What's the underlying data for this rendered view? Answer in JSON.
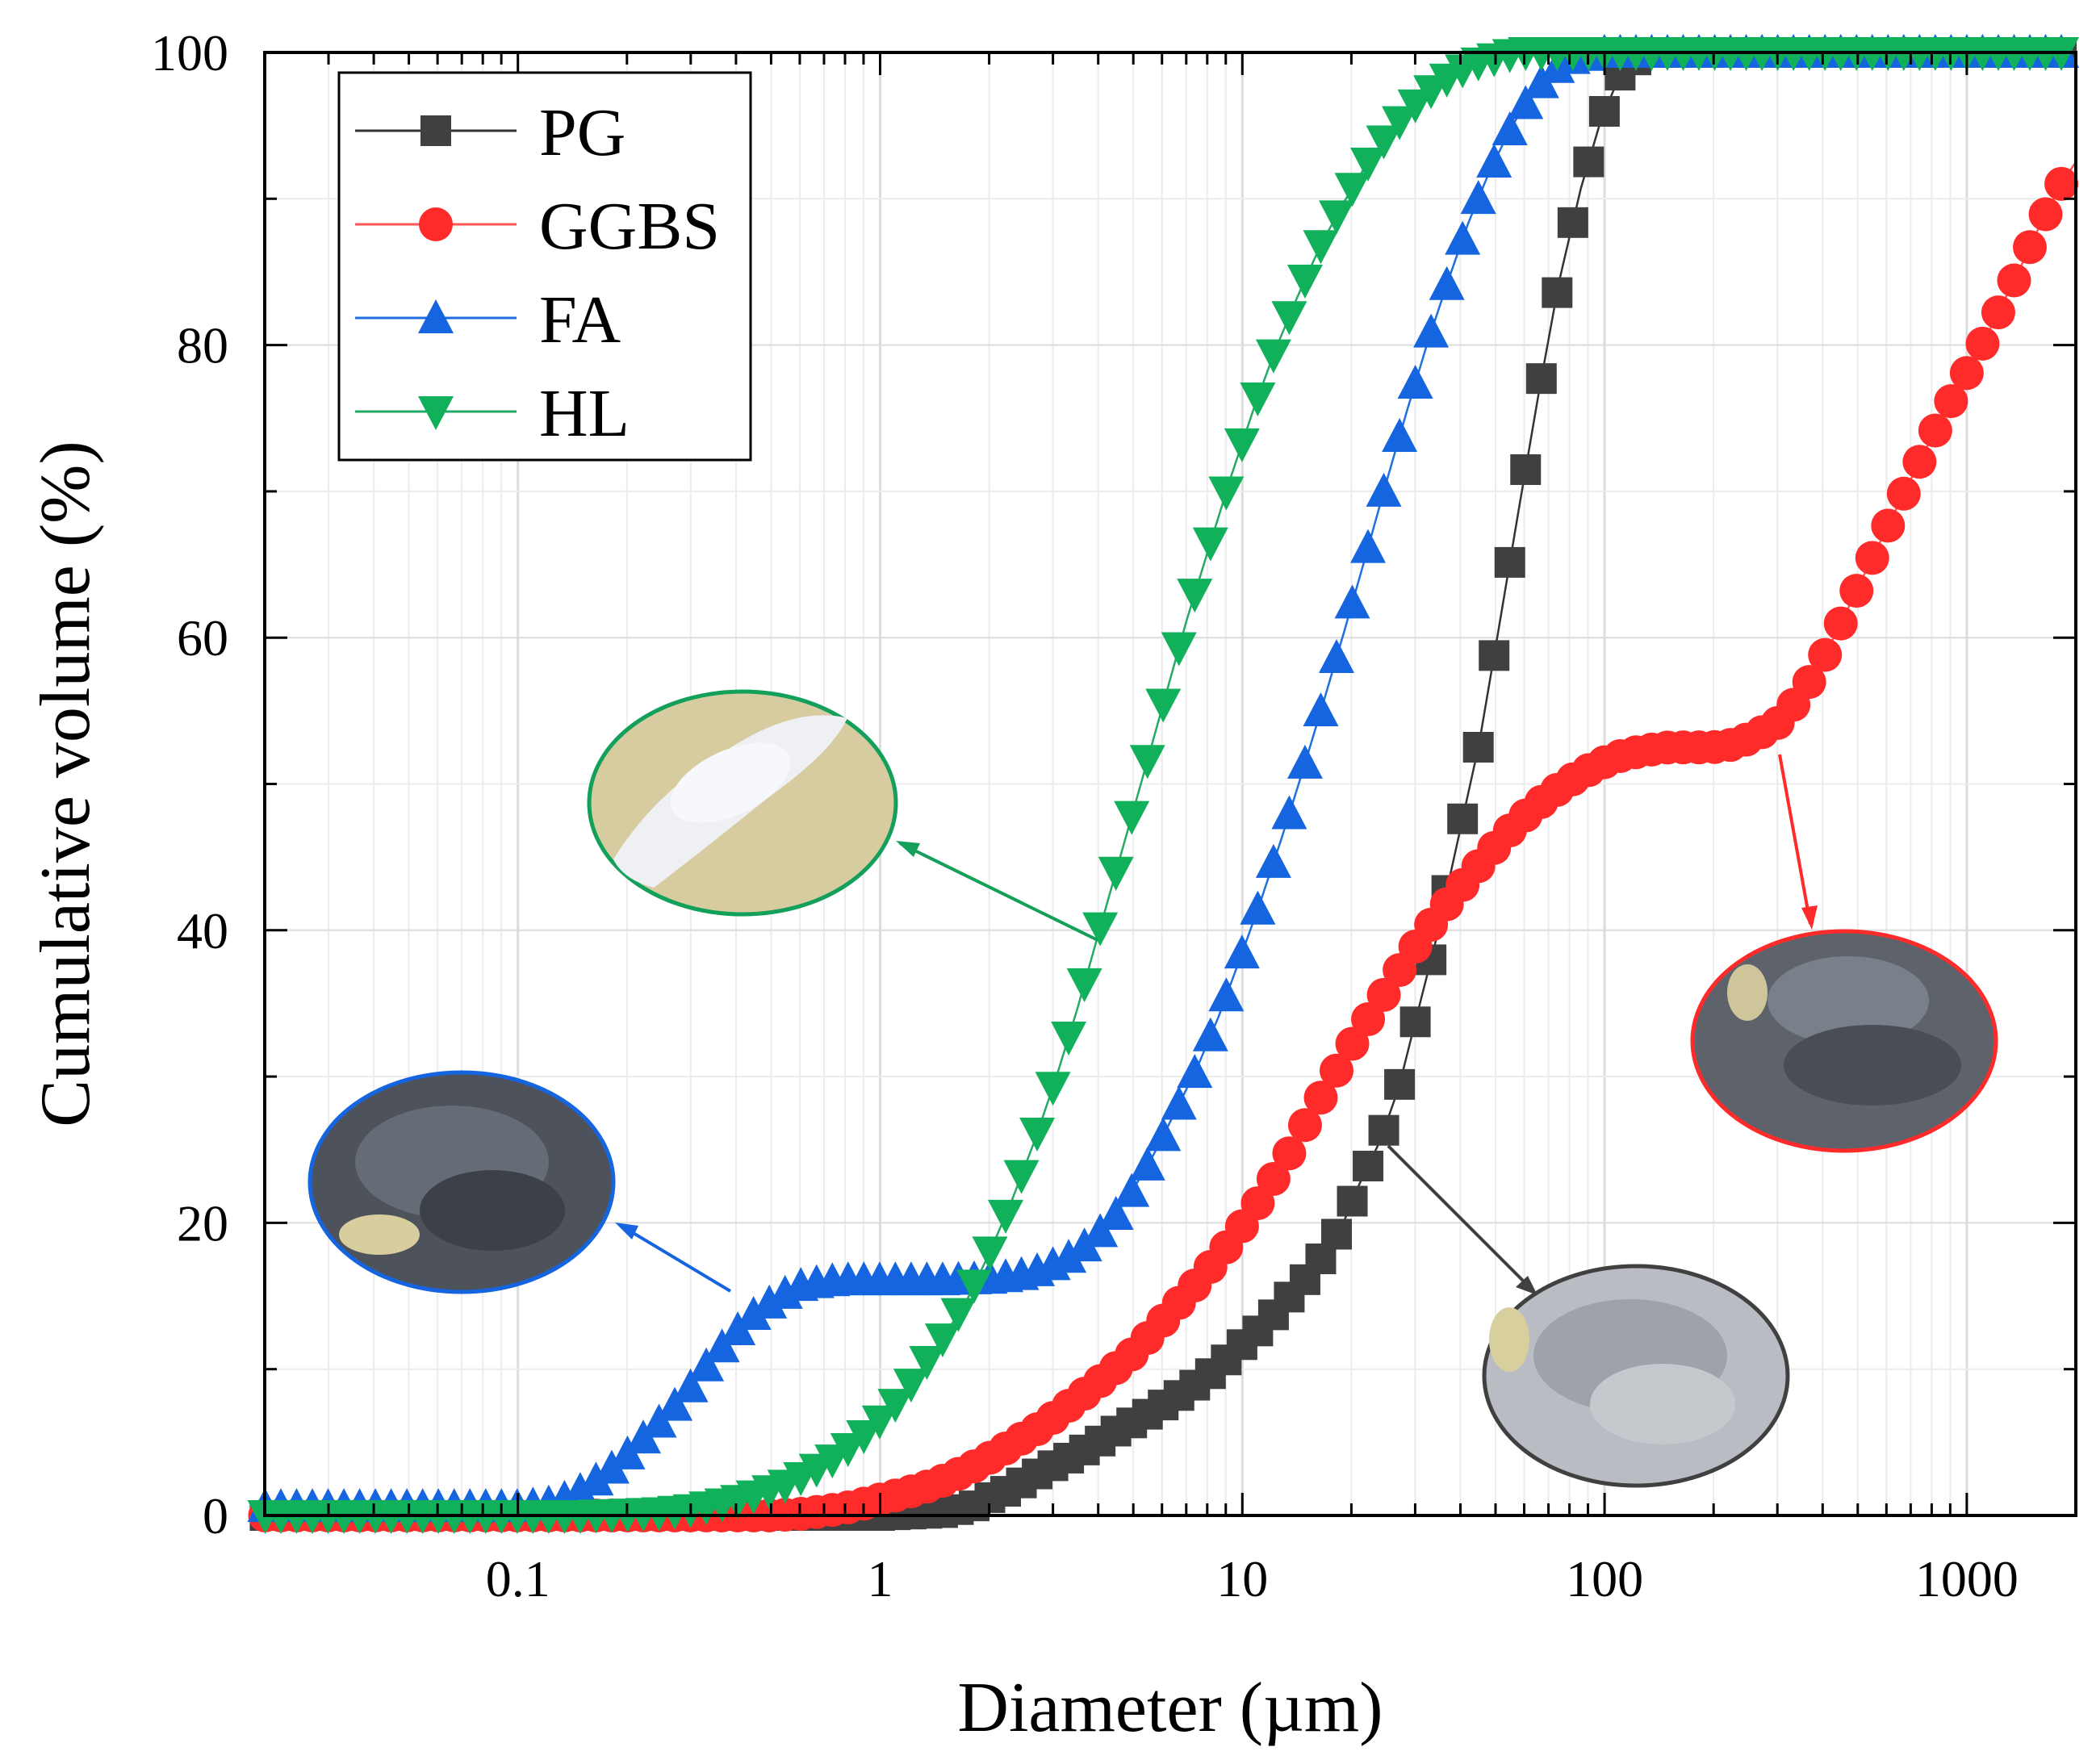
{
  "chart_data": {
    "type": "scatter",
    "x_scale": "log",
    "xlabel": "Diameter (µm)",
    "ylabel": "Cumulative volume (%)",
    "xlim": [
      0.02,
      2000
    ],
    "ylim": [
      0,
      100
    ],
    "grid": true,
    "legend_position": "top-left",
    "x_ticks": [
      {
        "value": 0.1,
        "label": "0.1"
      },
      {
        "value": 1,
        "label": "1"
      },
      {
        "value": 10,
        "label": "10"
      },
      {
        "value": 100,
        "label": "100"
      },
      {
        "value": 1000,
        "label": "1000"
      }
    ],
    "y_ticks": [
      {
        "value": 0,
        "label": "0"
      },
      {
        "value": 20,
        "label": "20"
      },
      {
        "value": 40,
        "label": "40"
      },
      {
        "value": 60,
        "label": "60"
      },
      {
        "value": 80,
        "label": "80"
      },
      {
        "value": 100,
        "label": "100"
      }
    ],
    "series": [
      {
        "name": "PG",
        "marker": "square",
        "color": "#404040",
        "line_color": "#333333",
        "points": [
          [
            0.02,
            0
          ],
          [
            1,
            0
          ],
          [
            1.5,
            0.2
          ],
          [
            1.8,
            0.6
          ],
          [
            2.0,
            1.2
          ],
          [
            2.3,
            1.8
          ],
          [
            2.6,
            2.6
          ],
          [
            3.0,
            3.4
          ],
          [
            3.5,
            4.2
          ],
          [
            4.0,
            5.0
          ],
          [
            4.5,
            5.8
          ],
          [
            5.2,
            6.6
          ],
          [
            6.0,
            7.5
          ],
          [
            7.0,
            8.5
          ],
          [
            8.0,
            9.5
          ],
          [
            9.0,
            10.6
          ],
          [
            10,
            11.7
          ],
          [
            11.5,
            13.0
          ],
          [
            13,
            14.5
          ],
          [
            15,
            16.2
          ],
          [
            17,
            18.0
          ],
          [
            19,
            20.0
          ],
          [
            21,
            22.6
          ],
          [
            24,
            25.6
          ],
          [
            27,
            29.2
          ],
          [
            30,
            33.7
          ],
          [
            34,
            39.0
          ],
          [
            45,
            52.7
          ],
          [
            51,
            60.6
          ],
          [
            58,
            68.8
          ],
          [
            66,
            76.9
          ],
          [
            75,
            84.4
          ],
          [
            86,
            90.7
          ],
          [
            98,
            95.5
          ],
          [
            112,
            98.8
          ],
          [
            130,
            100
          ],
          [
            2000,
            100
          ]
        ]
      },
      {
        "name": "GGBS",
        "marker": "circle",
        "color": "#ff2a2a",
        "line_color": "#ff5555",
        "points": [
          [
            0.02,
            0
          ],
          [
            0.5,
            0
          ],
          [
            0.6,
            0.1
          ],
          [
            0.7,
            0.3
          ],
          [
            0.8,
            0.5
          ],
          [
            0.9,
            0.8
          ],
          [
            1.0,
            1.1
          ],
          [
            1.2,
            1.6
          ],
          [
            1.4,
            2.1
          ],
          [
            1.6,
            2.7
          ],
          [
            1.8,
            3.3
          ],
          [
            2.1,
            4.2
          ],
          [
            2.4,
            5.1
          ],
          [
            2.8,
            6.1
          ],
          [
            3.2,
            7.2
          ],
          [
            3.7,
            8.4
          ],
          [
            4.3,
            9.7
          ],
          [
            5.0,
            11.1
          ],
          [
            5.7,
            12.6
          ],
          [
            6.5,
            14.2
          ],
          [
            7.5,
            15.9
          ],
          [
            8.7,
            17.8
          ],
          [
            10,
            19.8
          ],
          [
            11.5,
            22.0
          ],
          [
            13.3,
            24.5
          ],
          [
            15.3,
            27.2
          ],
          [
            17.7,
            29.9
          ],
          [
            20.4,
            32.5
          ],
          [
            23.6,
            34.9
          ],
          [
            27.2,
            37.3
          ],
          [
            31.4,
            39.6
          ],
          [
            36.2,
            41.6
          ],
          [
            41.8,
            43.5
          ],
          [
            48.2,
            45.3
          ],
          [
            55.6,
            47.0
          ],
          [
            64,
            48.4
          ],
          [
            74,
            49.6
          ],
          [
            85,
            50.6
          ],
          [
            98,
            51.4
          ],
          [
            113,
            52.0
          ],
          [
            130,
            52.3
          ],
          [
            150,
            52.5
          ],
          [
            172,
            52.5
          ],
          [
            198,
            52.5
          ],
          [
            228,
            52.7
          ],
          [
            262,
            53.3
          ],
          [
            302,
            54.2
          ],
          [
            348,
            56.0
          ],
          [
            400,
            58.5
          ],
          [
            460,
            61.5
          ],
          [
            530,
            64.7
          ],
          [
            610,
            67.8
          ],
          [
            700,
            70.8
          ],
          [
            800,
            73.7
          ],
          [
            920,
            76.5
          ],
          [
            1060,
            79.2
          ],
          [
            1220,
            82.2
          ],
          [
            1400,
            85.2
          ],
          [
            1600,
            88.3
          ],
          [
            1840,
            91.2
          ],
          [
            2000,
            92.5
          ]
        ]
      },
      {
        "name": "FA",
        "marker": "triangle-up",
        "color": "#1565e0",
        "line_color": "#1e6fe0",
        "points": [
          [
            0.02,
            0.6
          ],
          [
            0.1,
            0.6
          ],
          [
            0.12,
            0.8
          ],
          [
            0.14,
            1.3
          ],
          [
            0.16,
            2.2
          ],
          [
            0.19,
            3.6
          ],
          [
            0.22,
            5.2
          ],
          [
            0.26,
            7.0
          ],
          [
            0.3,
            8.8
          ],
          [
            0.34,
            10.6
          ],
          [
            0.39,
            12.3
          ],
          [
            0.45,
            13.8
          ],
          [
            0.52,
            14.9
          ],
          [
            0.6,
            15.7
          ],
          [
            0.7,
            16.0
          ],
          [
            0.8,
            16.1
          ],
          [
            1.0,
            16.1
          ],
          [
            1.5,
            16.1
          ],
          [
            2.0,
            16.2
          ],
          [
            2.4,
            16.4
          ],
          [
            2.8,
            16.8
          ],
          [
            3.3,
            17.6
          ],
          [
            3.8,
            18.7
          ],
          [
            4.4,
            20.3
          ],
          [
            5.0,
            22.3
          ],
          [
            5.7,
            24.7
          ],
          [
            6.5,
            27.5
          ],
          [
            7.5,
            30.6
          ],
          [
            8.6,
            34.1
          ],
          [
            9.8,
            37.9
          ],
          [
            11.2,
            41.9
          ],
          [
            12.8,
            46.2
          ],
          [
            14.6,
            50.7
          ],
          [
            16.7,
            55.5
          ],
          [
            19.1,
            60.4
          ],
          [
            21.8,
            65.4
          ],
          [
            24.9,
            70.5
          ],
          [
            28.4,
            75.4
          ],
          [
            32.4,
            80.1
          ],
          [
            37,
            84.4
          ],
          [
            42,
            88.3
          ],
          [
            48,
            91.8
          ],
          [
            55,
            94.8
          ],
          [
            63,
            97.2
          ],
          [
            72,
            98.8
          ],
          [
            82,
            99.6
          ],
          [
            100,
            100
          ],
          [
            2000,
            100
          ]
        ]
      },
      {
        "name": "HL",
        "marker": "triangle-down",
        "color": "#11b05a",
        "line_color": "#22aa66",
        "points": [
          [
            0.02,
            0
          ],
          [
            0.15,
            0
          ],
          [
            0.2,
            0.1
          ],
          [
            0.25,
            0.2
          ],
          [
            0.3,
            0.4
          ],
          [
            0.35,
            0.7
          ],
          [
            0.4,
            1.0
          ],
          [
            0.47,
            1.5
          ],
          [
            0.55,
            2.1
          ],
          [
            0.64,
            2.9
          ],
          [
            0.75,
            3.9
          ],
          [
            0.87,
            5.1
          ],
          [
            1.0,
            6.5
          ],
          [
            1.15,
            8.1
          ],
          [
            1.3,
            10.0
          ],
          [
            1.5,
            12.2
          ],
          [
            1.75,
            14.9
          ],
          [
            2.0,
            17.9
          ],
          [
            2.3,
            21.4
          ],
          [
            2.65,
            25.4
          ],
          [
            3.05,
            29.8
          ],
          [
            3.5,
            34.6
          ],
          [
            4.0,
            39.7
          ],
          [
            4.6,
            45.0
          ],
          [
            5.3,
            50.4
          ],
          [
            6.1,
            55.8
          ],
          [
            7.0,
            61.1
          ],
          [
            8.1,
            66.2
          ],
          [
            9.3,
            71.0
          ],
          [
            10.7,
            75.5
          ],
          [
            12.3,
            79.6
          ],
          [
            14.2,
            83.3
          ],
          [
            16.3,
            86.6
          ],
          [
            18.8,
            89.5
          ],
          [
            21.6,
            92.0
          ],
          [
            24.8,
            94.1
          ],
          [
            28.5,
            95.9
          ],
          [
            32.8,
            97.3
          ],
          [
            37.7,
            98.4
          ],
          [
            43.4,
            99.2
          ],
          [
            50,
            99.6
          ],
          [
            57.5,
            100
          ],
          [
            2000,
            100
          ]
        ]
      }
    ]
  }
}
